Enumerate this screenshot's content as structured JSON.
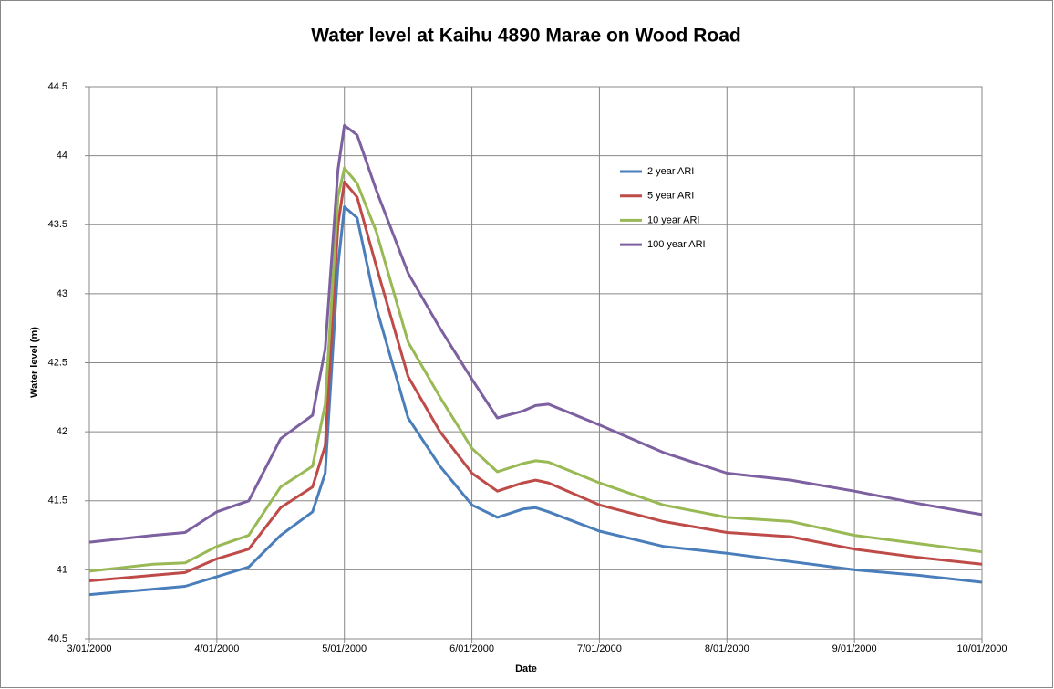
{
  "chart_data": {
    "type": "line",
    "title": "Water level at Kaihu 4890 Marae on Wood Road",
    "x_label": "Date",
    "y_label": "Water level (m)",
    "x": [
      3,
      3.5,
      3.75,
      4,
      4.25,
      4.5,
      4.75,
      4.85,
      4.95,
      5,
      5.1,
      5.25,
      5.5,
      5.75,
      6,
      6.2,
      6.4,
      6.5,
      6.6,
      7,
      7.5,
      8,
      8.5,
      9,
      9.5,
      10
    ],
    "series": [
      {
        "name": "2 year ARI",
        "color": "#4a7ebb",
        "values": [
          40.82,
          40.86,
          40.88,
          40.95,
          41.02,
          41.25,
          41.42,
          41.7,
          43.2,
          43.63,
          43.55,
          42.9,
          42.1,
          41.75,
          41.47,
          41.38,
          41.44,
          41.45,
          41.42,
          41.28,
          41.17,
          41.12,
          41.06,
          41.0,
          40.96,
          40.91
        ]
      },
      {
        "name": "5 year ARI",
        "color": "#be4b48",
        "values": [
          40.92,
          40.96,
          40.98,
          41.08,
          41.15,
          41.45,
          41.6,
          41.9,
          43.5,
          43.81,
          43.7,
          43.2,
          42.4,
          42.0,
          41.7,
          41.57,
          41.63,
          41.65,
          41.63,
          41.47,
          41.35,
          41.27,
          41.24,
          41.15,
          41.09,
          41.04
        ]
      },
      {
        "name": "10 year ARI",
        "color": "#98b954",
        "values": [
          40.99,
          41.04,
          41.05,
          41.17,
          41.25,
          41.6,
          41.75,
          42.2,
          43.7,
          43.91,
          43.8,
          43.45,
          42.65,
          42.25,
          41.88,
          41.71,
          41.77,
          41.79,
          41.78,
          41.63,
          41.47,
          41.38,
          41.35,
          41.25,
          41.19,
          41.13
        ]
      },
      {
        "name": "100 year ARI",
        "color": "#7d60a0",
        "values": [
          41.2,
          41.25,
          41.27,
          41.42,
          41.5,
          41.95,
          42.12,
          42.6,
          43.9,
          44.22,
          44.15,
          43.75,
          43.15,
          42.75,
          42.38,
          42.1,
          42.15,
          42.19,
          42.2,
          42.05,
          41.85,
          41.7,
          41.65,
          41.57,
          41.48,
          41.4
        ]
      }
    ],
    "xlim": [
      3,
      10
    ],
    "xticks": [
      {
        "value": 3,
        "label": "3/01/2000"
      },
      {
        "value": 4,
        "label": "4/01/2000"
      },
      {
        "value": 5,
        "label": "5/01/2000"
      },
      {
        "value": 6,
        "label": "6/01/2000"
      },
      {
        "value": 7,
        "label": "7/01/2000"
      },
      {
        "value": 8,
        "label": "8/01/2000"
      },
      {
        "value": 9,
        "label": "9/01/2000"
      },
      {
        "value": 10,
        "label": "10/01/2000"
      }
    ],
    "ylim": [
      40.5,
      44.5
    ],
    "yticks": [
      40.5,
      41,
      41.5,
      42,
      42.5,
      43,
      43.5,
      44,
      44.5
    ],
    "grid": true
  }
}
